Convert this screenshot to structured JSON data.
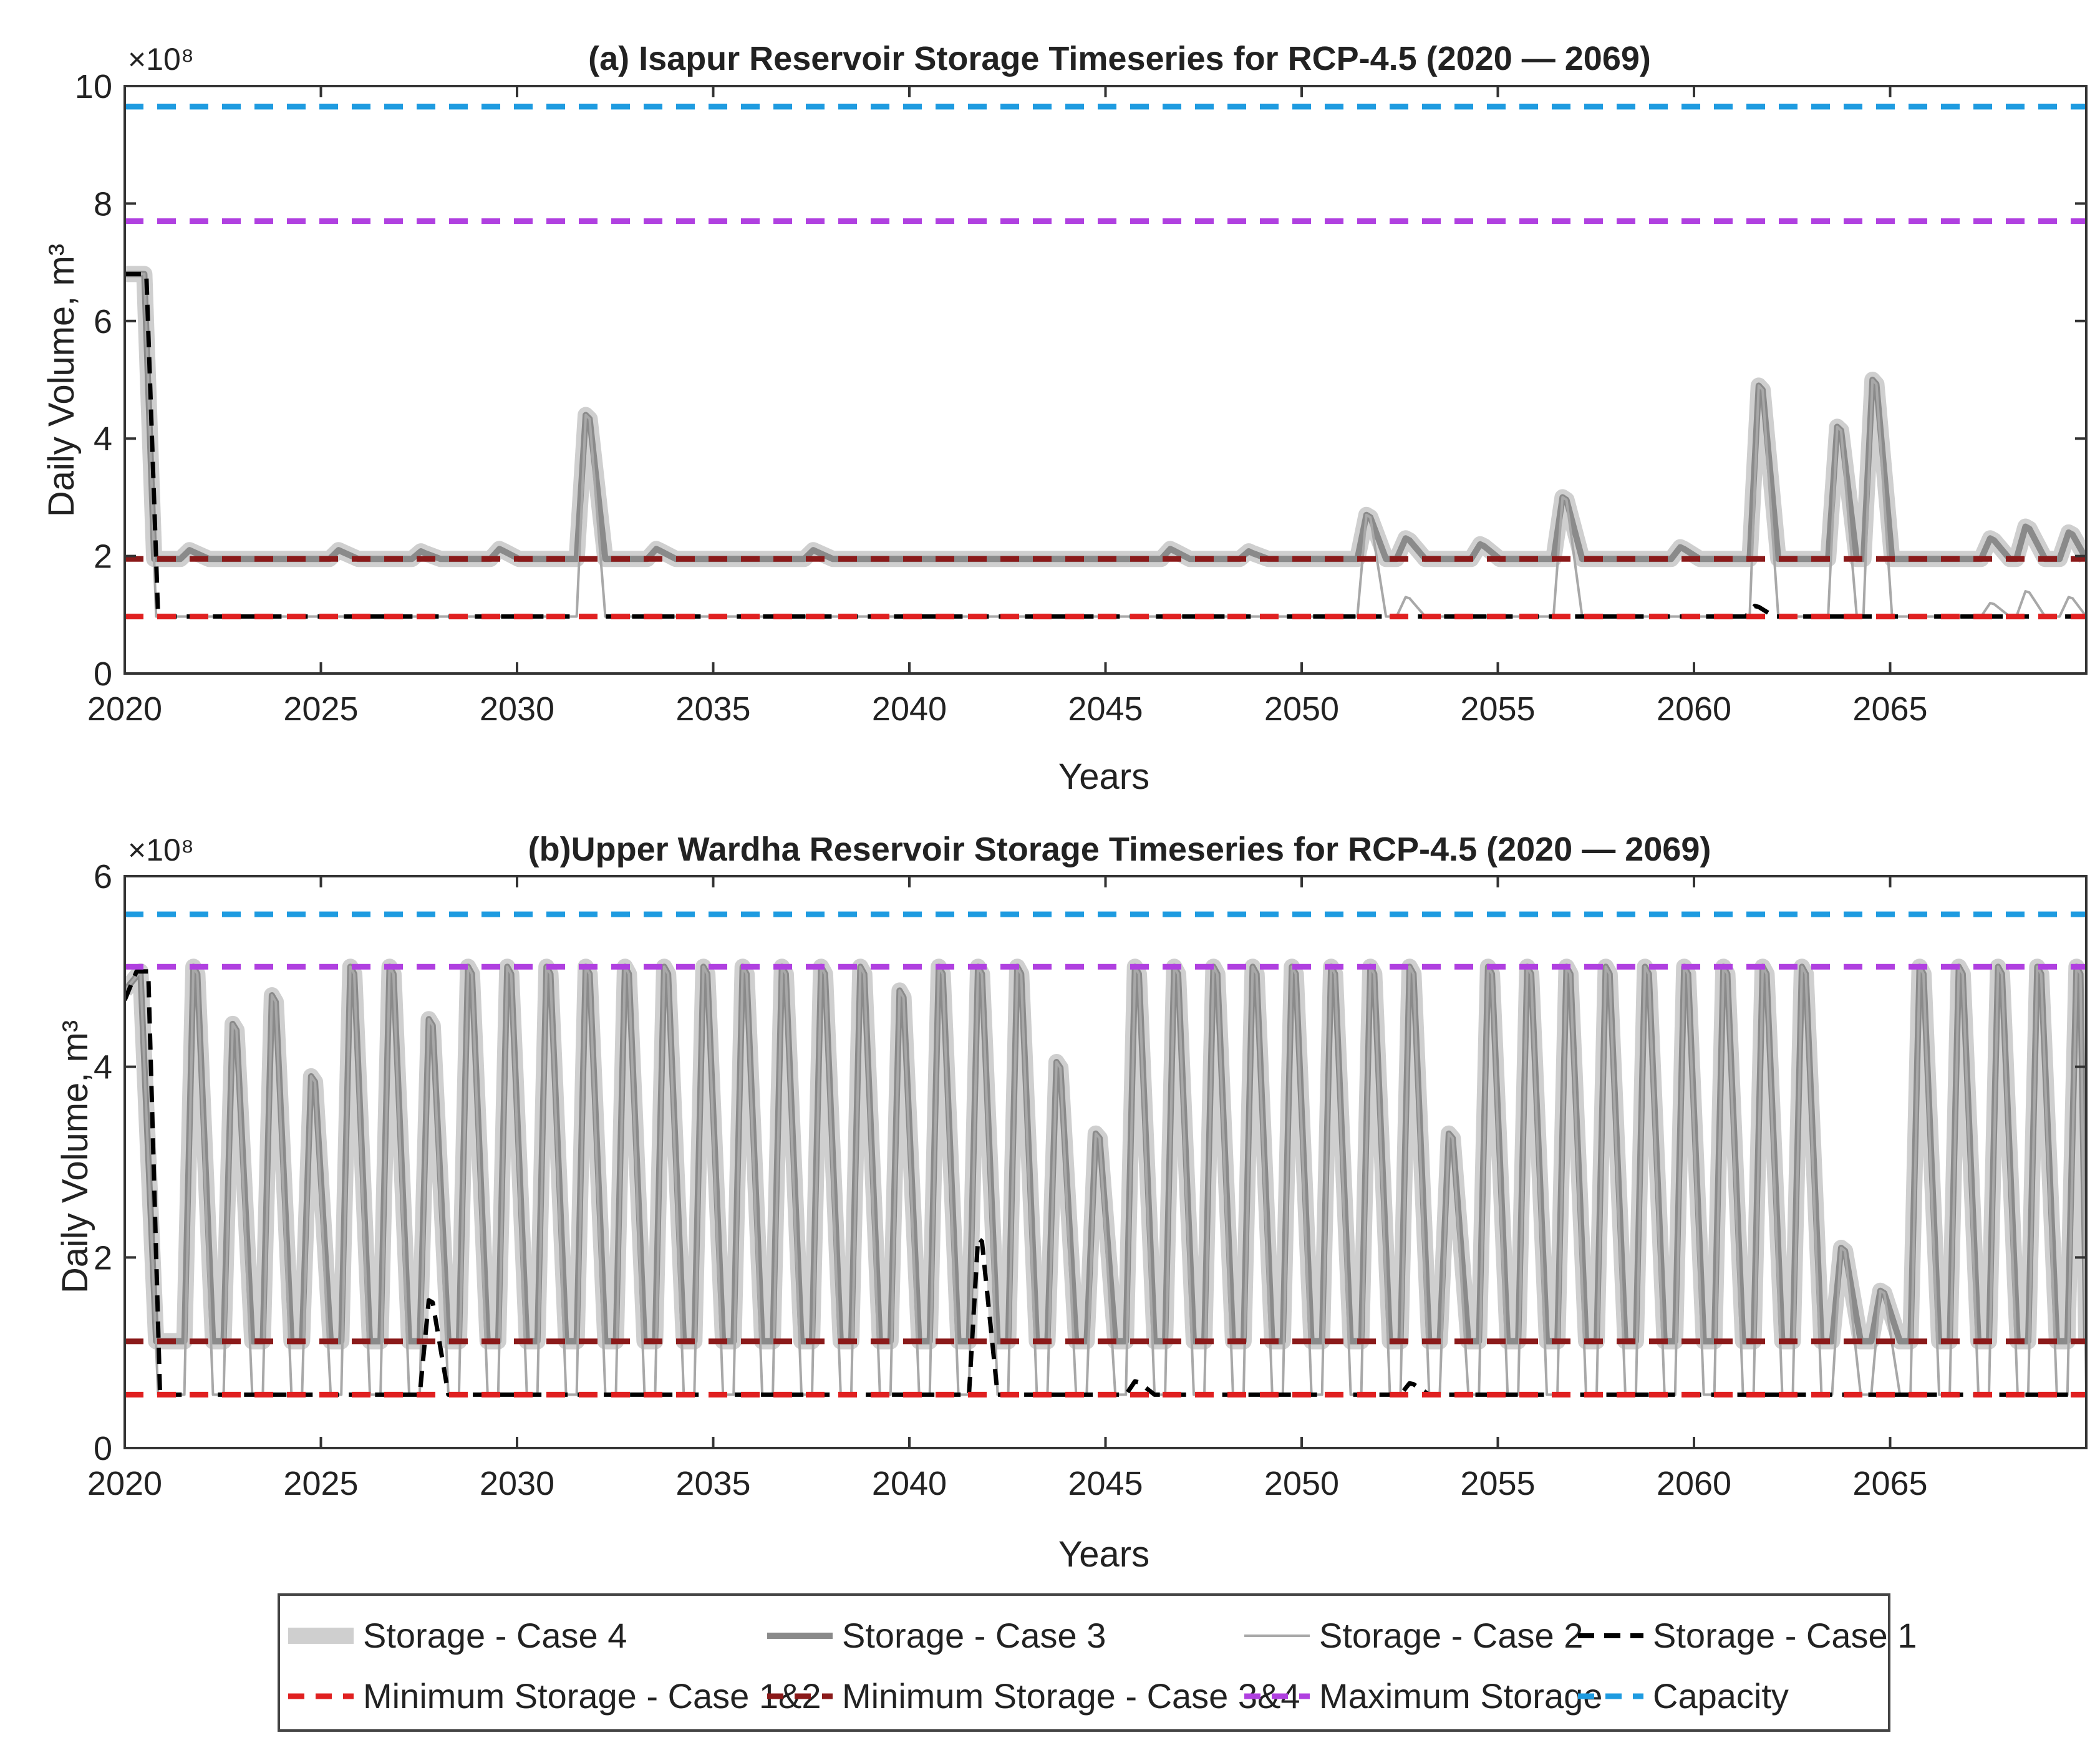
{
  "chart_data": [
    {
      "type": "line",
      "title": "(a) Isapur Reservoir Storage Timeseries for RCP-4.5 (2020 — 2069)",
      "xlabel": "Years",
      "ylabel": "Daily Volume, m³",
      "y_multiplier": "×10⁸",
      "xlim": [
        2020,
        2070
      ],
      "ylim": [
        0,
        10
      ],
      "x_ticks": [
        2020,
        2025,
        2030,
        2035,
        2040,
        2045,
        2050,
        2055,
        2060,
        2065
      ],
      "y_ticks": [
        0,
        2,
        4,
        6,
        8,
        10
      ],
      "grid": false,
      "reference_lines": [
        {
          "name": "Capacity",
          "value": 9.65
        },
        {
          "name": "Maximum Storage",
          "value": 7.7
        },
        {
          "name": "Minimum Storage - Case 3&4",
          "value": 1.95
        },
        {
          "name": "Minimum Storage - Case 1&2",
          "value": 0.97
        }
      ],
      "series": [
        {
          "name": "Storage - Case 4",
          "baseline": 1.95,
          "initial": [
            [
              2020,
              6.8
            ],
            [
              2020.5,
              6.8
            ],
            [
              2020.75,
              1.95
            ]
          ],
          "peaks": [
            [
              2021.7,
              2.1
            ],
            [
              2025.5,
              2.1
            ],
            [
              2027.6,
              2.08
            ],
            [
              2029.6,
              2.12
            ],
            [
              2031.8,
              4.4
            ],
            [
              2033.6,
              2.12
            ],
            [
              2037.6,
              2.1
            ],
            [
              2046.7,
              2.12
            ],
            [
              2048.7,
              2.08
            ],
            [
              2051.7,
              2.7
            ],
            [
              2052.7,
              2.3
            ],
            [
              2054.6,
              2.2
            ],
            [
              2056.7,
              3.0
            ],
            [
              2059.7,
              2.15
            ],
            [
              2061.7,
              4.9
            ],
            [
              2063.7,
              4.2
            ],
            [
              2064.6,
              5.0
            ],
            [
              2067.6,
              2.3
            ],
            [
              2068.5,
              2.5
            ],
            [
              2069.6,
              2.4
            ]
          ]
        },
        {
          "name": "Storage - Case 3",
          "baseline": 1.95,
          "initial": [
            [
              2020,
              6.8
            ],
            [
              2020.5,
              6.8
            ],
            [
              2020.75,
              1.95
            ]
          ],
          "peaks": [
            [
              2021.7,
              2.1
            ],
            [
              2025.5,
              2.1
            ],
            [
              2027.6,
              2.08
            ],
            [
              2029.6,
              2.12
            ],
            [
              2031.8,
              4.4
            ],
            [
              2033.6,
              2.12
            ],
            [
              2037.6,
              2.1
            ],
            [
              2046.7,
              2.12
            ],
            [
              2048.7,
              2.08
            ],
            [
              2051.7,
              2.7
            ],
            [
              2052.7,
              2.3
            ],
            [
              2054.6,
              2.2
            ],
            [
              2056.7,
              3.0
            ],
            [
              2059.7,
              2.15
            ],
            [
              2061.7,
              4.9
            ],
            [
              2063.7,
              4.2
            ],
            [
              2064.6,
              5.0
            ],
            [
              2067.6,
              2.3
            ],
            [
              2068.5,
              2.5
            ],
            [
              2069.6,
              2.4
            ]
          ]
        },
        {
          "name": "Storage - Case 2",
          "baseline": 0.97,
          "initial": [
            [
              2020,
              6.8
            ],
            [
              2020.5,
              6.8
            ],
            [
              2020.8,
              0.97
            ]
          ],
          "peaks": [
            [
              2031.8,
              4.4
            ],
            [
              2051.7,
              2.7
            ],
            [
              2052.7,
              1.3
            ],
            [
              2056.7,
              3.0
            ],
            [
              2061.7,
              4.9
            ],
            [
              2063.7,
              4.2
            ],
            [
              2064.6,
              5.0
            ],
            [
              2067.6,
              1.2
            ],
            [
              2068.5,
              1.4
            ],
            [
              2069.6,
              1.3
            ]
          ]
        },
        {
          "name": "Storage - Case 1",
          "baseline": 0.97,
          "initial": [
            [
              2020,
              6.8
            ],
            [
              2020.55,
              6.8
            ],
            [
              2020.85,
              0.97
            ]
          ],
          "peaks": [
            [
              2061.6,
              1.15
            ]
          ]
        }
      ]
    },
    {
      "type": "line",
      "title": "(b)Upper Wardha Reservoir Storage Timeseries for RCP-4.5 (2020 — 2069)",
      "xlabel": "Years",
      "ylabel": "Daily Volume, m³",
      "y_multiplier": "×10⁸",
      "xlim": [
        2020,
        2070
      ],
      "ylim": [
        0,
        6
      ],
      "x_ticks": [
        2020,
        2025,
        2030,
        2035,
        2040,
        2045,
        2050,
        2055,
        2060,
        2065
      ],
      "y_ticks": [
        0,
        2,
        4,
        6
      ],
      "grid": false,
      "reference_lines": [
        {
          "name": "Capacity",
          "value": 5.6
        },
        {
          "name": "Maximum Storage",
          "value": 5.05
        },
        {
          "name": "Minimum Storage - Case 3&4",
          "value": 1.12
        },
        {
          "name": "Minimum Storage - Case 1&2",
          "value": 0.56
        }
      ],
      "series": [
        {
          "name": "Storage - Case 4",
          "baseline": 1.12,
          "initial": [
            [
              2020,
              4.8
            ],
            [
              2020.4,
              5.0
            ],
            [
              2020.8,
              1.12
            ]
          ],
          "peaks": [
            [
              2021.8,
              5.05
            ],
            [
              2022.8,
              4.45
            ],
            [
              2023.8,
              4.75
            ],
            [
              2024.8,
              3.9
            ],
            [
              2025.8,
              5.05
            ],
            [
              2026.8,
              5.05
            ],
            [
              2027.8,
              4.5
            ],
            [
              2028.8,
              5.05
            ],
            [
              2029.8,
              5.05
            ],
            [
              2030.8,
              5.05
            ],
            [
              2031.8,
              5.05
            ],
            [
              2032.8,
              5.05
            ],
            [
              2033.8,
              5.05
            ],
            [
              2034.8,
              5.05
            ],
            [
              2035.8,
              5.05
            ],
            [
              2036.8,
              5.05
            ],
            [
              2037.8,
              5.05
            ],
            [
              2038.8,
              5.05
            ],
            [
              2039.8,
              4.8
            ],
            [
              2040.8,
              5.05
            ],
            [
              2041.8,
              5.05
            ],
            [
              2042.8,
              5.05
            ],
            [
              2043.8,
              4.05
            ],
            [
              2044.8,
              3.3
            ],
            [
              2045.8,
              5.05
            ],
            [
              2046.8,
              5.05
            ],
            [
              2047.8,
              5.05
            ],
            [
              2048.8,
              5.05
            ],
            [
              2049.8,
              5.05
            ],
            [
              2050.8,
              5.05
            ],
            [
              2051.8,
              5.05
            ],
            [
              2052.8,
              5.05
            ],
            [
              2053.8,
              3.3
            ],
            [
              2054.8,
              5.05
            ],
            [
              2055.8,
              5.05
            ],
            [
              2056.8,
              5.05
            ],
            [
              2057.8,
              5.05
            ],
            [
              2058.8,
              5.05
            ],
            [
              2059.8,
              5.05
            ],
            [
              2060.8,
              5.05
            ],
            [
              2061.8,
              5.05
            ],
            [
              2062.8,
              5.05
            ],
            [
              2063.8,
              2.1
            ],
            [
              2064.8,
              1.65
            ],
            [
              2065.8,
              5.05
            ],
            [
              2066.8,
              5.05
            ],
            [
              2067.8,
              5.05
            ],
            [
              2068.8,
              5.05
            ],
            [
              2069.8,
              5.05
            ]
          ]
        },
        {
          "name": "Storage - Case 3",
          "baseline": 1.12,
          "initial": [
            [
              2020,
              4.8
            ],
            [
              2020.4,
              5.0
            ],
            [
              2020.8,
              1.12
            ]
          ],
          "peaks": [
            [
              2021.8,
              5.05
            ],
            [
              2022.8,
              4.45
            ],
            [
              2023.8,
              4.75
            ],
            [
              2024.8,
              3.9
            ],
            [
              2025.8,
              5.05
            ],
            [
              2026.8,
              5.05
            ],
            [
              2027.8,
              4.5
            ],
            [
              2028.8,
              5.05
            ],
            [
              2029.8,
              5.05
            ],
            [
              2030.8,
              5.05
            ],
            [
              2031.8,
              5.05
            ],
            [
              2032.8,
              5.05
            ],
            [
              2033.8,
              5.05
            ],
            [
              2034.8,
              5.05
            ],
            [
              2035.8,
              5.05
            ],
            [
              2036.8,
              5.05
            ],
            [
              2037.8,
              5.05
            ],
            [
              2038.8,
              5.05
            ],
            [
              2039.8,
              4.8
            ],
            [
              2040.8,
              5.05
            ],
            [
              2041.8,
              5.05
            ],
            [
              2042.8,
              5.05
            ],
            [
              2043.8,
              4.05
            ],
            [
              2044.8,
              3.3
            ],
            [
              2045.8,
              5.05
            ],
            [
              2046.8,
              5.05
            ],
            [
              2047.8,
              5.05
            ],
            [
              2048.8,
              5.05
            ],
            [
              2049.8,
              5.05
            ],
            [
              2050.8,
              5.05
            ],
            [
              2051.8,
              5.05
            ],
            [
              2052.8,
              5.05
            ],
            [
              2053.8,
              3.3
            ],
            [
              2054.8,
              5.05
            ],
            [
              2055.8,
              5.05
            ],
            [
              2056.8,
              5.05
            ],
            [
              2057.8,
              5.05
            ],
            [
              2058.8,
              5.05
            ],
            [
              2059.8,
              5.05
            ],
            [
              2060.8,
              5.05
            ],
            [
              2061.8,
              5.05
            ],
            [
              2062.8,
              5.05
            ],
            [
              2063.8,
              2.1
            ],
            [
              2064.8,
              1.65
            ],
            [
              2065.8,
              5.05
            ],
            [
              2066.8,
              5.05
            ],
            [
              2067.8,
              5.05
            ],
            [
              2068.8,
              5.05
            ],
            [
              2069.8,
              5.05
            ]
          ]
        },
        {
          "name": "Storage - Case 2",
          "baseline": 0.56,
          "initial": [
            [
              2020,
              4.8
            ],
            [
              2020.4,
              5.0
            ],
            [
              2020.85,
              0.56
            ]
          ],
          "peaks": [
            [
              2021.8,
              5.05
            ],
            [
              2022.8,
              4.45
            ],
            [
              2023.8,
              4.75
            ],
            [
              2024.8,
              3.9
            ],
            [
              2025.8,
              5.05
            ],
            [
              2026.8,
              5.05
            ],
            [
              2027.8,
              4.5
            ],
            [
              2028.8,
              5.05
            ],
            [
              2029.8,
              5.05
            ],
            [
              2030.8,
              5.05
            ],
            [
              2031.8,
              5.05
            ],
            [
              2032.8,
              5.05
            ],
            [
              2033.8,
              5.05
            ],
            [
              2034.8,
              5.05
            ],
            [
              2035.8,
              5.05
            ],
            [
              2036.8,
              5.05
            ],
            [
              2037.8,
              5.05
            ],
            [
              2038.8,
              5.05
            ],
            [
              2039.8,
              4.8
            ],
            [
              2040.8,
              5.05
            ],
            [
              2041.8,
              5.05
            ],
            [
              2042.8,
              5.05
            ],
            [
              2043.8,
              4.05
            ],
            [
              2044.8,
              3.3
            ],
            [
              2045.8,
              5.05
            ],
            [
              2046.8,
              5.05
            ],
            [
              2047.8,
              5.05
            ],
            [
              2048.8,
              5.05
            ],
            [
              2049.8,
              5.05
            ],
            [
              2050.8,
              5.05
            ],
            [
              2051.8,
              5.05
            ],
            [
              2052.8,
              5.05
            ],
            [
              2053.8,
              3.3
            ],
            [
              2054.8,
              5.05
            ],
            [
              2055.8,
              5.05
            ],
            [
              2056.8,
              5.05
            ],
            [
              2057.8,
              5.05
            ],
            [
              2058.8,
              5.05
            ],
            [
              2059.8,
              5.05
            ],
            [
              2060.8,
              5.05
            ],
            [
              2061.8,
              5.05
            ],
            [
              2062.8,
              5.05
            ],
            [
              2063.8,
              2.1
            ],
            [
              2064.8,
              1.65
            ],
            [
              2065.8,
              5.05
            ],
            [
              2066.8,
              5.05
            ],
            [
              2067.8,
              5.05
            ],
            [
              2068.8,
              5.05
            ],
            [
              2069.8,
              5.05
            ]
          ]
        },
        {
          "name": "Storage - Case 1",
          "baseline": 0.56,
          "initial": [
            [
              2020,
              4.7
            ],
            [
              2020.3,
              5.0
            ],
            [
              2020.6,
              5.0
            ],
            [
              2020.9,
              0.56
            ]
          ],
          "peaks": [
            [
              2027.8,
              1.55
            ],
            [
              2041.8,
              2.2
            ],
            [
              2045.8,
              0.7
            ],
            [
              2052.8,
              0.68
            ]
          ]
        }
      ]
    }
  ],
  "legend": {
    "items": [
      {
        "label": "Storage - Case 4",
        "style": "thick-light"
      },
      {
        "label": "Storage - Case 3",
        "style": "medium-gray"
      },
      {
        "label": "Storage - Case 2",
        "style": "thin-gray"
      },
      {
        "label": "Storage - Case 1",
        "style": "black-dashed"
      },
      {
        "label": "Minimum Storage - Case 1&2",
        "style": "red-dashed"
      },
      {
        "label": "Minimum Storage - Case 3&4",
        "style": "darkred-dashed"
      },
      {
        "label": "Maximum Storage",
        "style": "purple-dashed"
      },
      {
        "label": "Capacity",
        "style": "blue-dashed"
      }
    ]
  },
  "colors": {
    "case4": "#cfcfcf",
    "case3": "#8a8a8a",
    "case2": "#a8a8a8",
    "case1": "#000000",
    "min12": "#e02020",
    "min34": "#8b1a1a",
    "max": "#b040e0",
    "capacity": "#1e9be0",
    "axis": "#333333"
  }
}
